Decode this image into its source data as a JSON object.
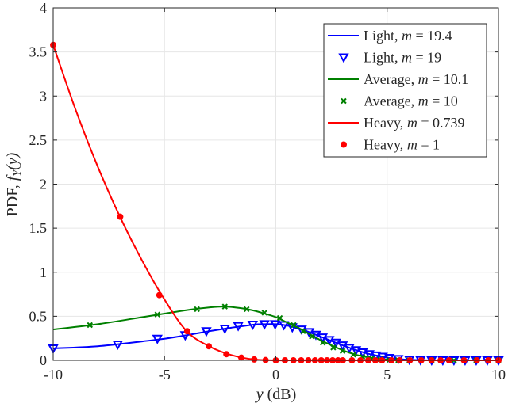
{
  "chart_data": {
    "type": "line",
    "title": "",
    "xlabel": {
      "var": "y",
      "unit": " (dB)"
    },
    "ylabel": {
      "prefix": "PDF, ",
      "func": "f",
      "sub": "Y",
      "arg": "(y)"
    },
    "xlim": [
      -10,
      10
    ],
    "ylim": [
      0,
      4
    ],
    "xticks": [
      -10,
      -5,
      0,
      5,
      10
    ],
    "xtick_labels": [
      "-10",
      "-5",
      "0",
      "5",
      "10"
    ],
    "yticks": [
      0,
      0.5,
      1,
      1.5,
      2,
      2.5,
      3,
      3.5,
      4
    ],
    "ytick_labels": [
      "0",
      "0.5",
      "1",
      "1.5",
      "2",
      "2.5",
      "3",
      "3.5",
      "4"
    ],
    "grid": true,
    "legend_position": "top-right",
    "series": [
      {
        "name": "Light, m = 19.4",
        "label": "Light, ",
        "m": "19.4",
        "kind": "line",
        "color": "#0000ff",
        "x": [
          -10,
          -8,
          -6,
          -5,
          -4,
          -3,
          -2,
          -1,
          -0.5,
          0,
          0.5,
          1,
          1.5,
          2,
          2.5,
          3,
          3.5,
          4,
          4.5,
          5,
          5.5,
          6,
          7,
          8,
          10
        ],
        "y": [
          0.135,
          0.16,
          0.215,
          0.245,
          0.285,
          0.33,
          0.37,
          0.405,
          0.41,
          0.41,
          0.395,
          0.36,
          0.32,
          0.27,
          0.22,
          0.17,
          0.125,
          0.085,
          0.055,
          0.03,
          0.015,
          0.007,
          0,
          0,
          0
        ]
      },
      {
        "name": "Light, m = 19",
        "label": "Light, ",
        "m": "19",
        "kind": "marker",
        "marker": "triangle-down",
        "color": "#0000ff",
        "x": [
          -10,
          -7.1,
          -5.32,
          -4.07,
          -3.12,
          -2.29,
          -1.69,
          -1.04,
          -0.51,
          -0.03,
          0.36,
          0.74,
          1.16,
          1.5,
          1.8,
          2.1,
          2.4,
          2.7,
          3.0,
          3.3,
          3.6,
          3.9,
          4.2,
          4.5,
          4.8,
          5.1,
          5.5,
          6,
          6.5,
          7,
          7.5,
          8,
          8.5,
          9,
          9.5,
          10
        ],
        "y": [
          0.135,
          0.18,
          0.245,
          0.285,
          0.33,
          0.36,
          0.39,
          0.405,
          0.41,
          0.41,
          0.4,
          0.375,
          0.35,
          0.32,
          0.29,
          0.26,
          0.23,
          0.2,
          0.17,
          0.14,
          0.115,
          0.09,
          0.07,
          0.055,
          0.04,
          0.027,
          0.015,
          0.007,
          0.003,
          0,
          0,
          0,
          0,
          0,
          0,
          0
        ]
      },
      {
        "name": "Average, m = 10.1",
        "label": "Average, ",
        "m": "10.1",
        "kind": "line",
        "color": "#008000",
        "x": [
          -10,
          -8,
          -6,
          -5,
          -4,
          -3,
          -2.3,
          -1.5,
          -1,
          -0.5,
          0,
          0.5,
          1,
          1.5,
          2,
          2.5,
          3,
          3.5,
          4,
          4.5,
          5,
          5.5,
          6,
          8,
          10
        ],
        "y": [
          0.35,
          0.41,
          0.49,
          0.53,
          0.57,
          0.6,
          0.61,
          0.59,
          0.565,
          0.53,
          0.49,
          0.43,
          0.37,
          0.3,
          0.23,
          0.17,
          0.115,
          0.07,
          0.04,
          0.02,
          0.008,
          0.003,
          0,
          0,
          0
        ]
      },
      {
        "name": "Average, m = 10",
        "label": "Average, ",
        "m": "10",
        "kind": "marker",
        "marker": "x",
        "color": "#008000",
        "x": [
          -8.35,
          -5.32,
          -3.54,
          -2.29,
          -1.31,
          -0.51,
          0.18,
          0.8,
          1.22,
          1.62,
          2.11,
          2.58,
          3.0,
          3.48,
          3.89,
          4.3,
          4.7,
          5.1,
          5.5,
          6,
          7,
          8,
          9,
          10
        ],
        "y": [
          0.4,
          0.52,
          0.58,
          0.61,
          0.58,
          0.54,
          0.48,
          0.4,
          0.33,
          0.27,
          0.2,
          0.145,
          0.105,
          0.065,
          0.04,
          0.022,
          0.012,
          0.005,
          0.002,
          0,
          0,
          0,
          0,
          0
        ]
      },
      {
        "name": "Heavy, m = 0.739",
        "label": "Heavy, ",
        "m": "0.739",
        "kind": "line",
        "color": "#ff0000",
        "x": [
          -10,
          -9,
          -8,
          -7,
          -6,
          -5,
          -4,
          -3,
          -2,
          -1,
          0,
          1,
          2,
          10
        ],
        "y": [
          3.58,
          2.85,
          2.2,
          1.63,
          1.13,
          0.69,
          0.33,
          0.16,
          0.06,
          0.01,
          0,
          0,
          0,
          0
        ]
      },
      {
        "name": "Heavy, m = 1",
        "label": "Heavy, ",
        "m": "1",
        "kind": "marker",
        "marker": "circle",
        "color": "#ff0000",
        "x": [
          -10,
          -6.99,
          -5.23,
          -3.98,
          -3.01,
          -2.22,
          -1.55,
          -0.97,
          -0.46,
          0,
          0.41,
          0.79,
          1.14,
          1.46,
          1.76,
          2.04,
          2.3,
          2.55,
          2.79,
          3.01,
          3.42,
          3.8,
          4.15,
          4.47,
          4.77,
          5.19,
          5.56,
          6.02,
          6.53,
          6.99,
          7.4,
          7.78,
          8.45,
          9.03,
          9.54,
          10
        ],
        "y": [
          3.58,
          1.63,
          0.74,
          0.33,
          0.16,
          0.07,
          0.03,
          0.01,
          0.003,
          0,
          0,
          0,
          0,
          0,
          0,
          0,
          0,
          0,
          0,
          0,
          0,
          0,
          0,
          0,
          0,
          0,
          0,
          0,
          0,
          0,
          0,
          0,
          0,
          0,
          0,
          0
        ]
      }
    ]
  }
}
